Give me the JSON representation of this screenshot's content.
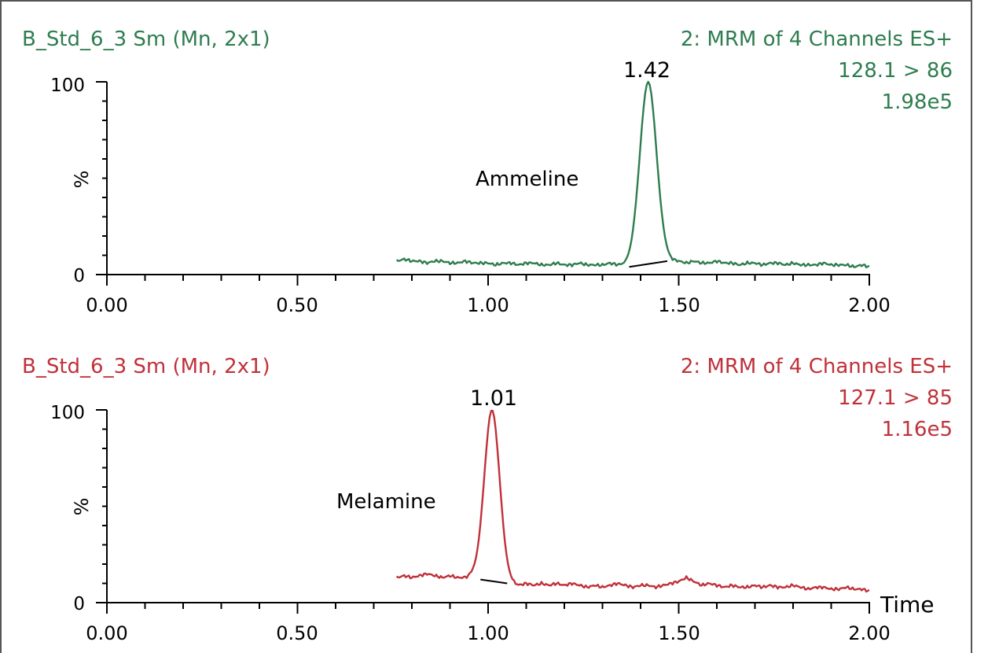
{
  "colors": {
    "top_trace": "#2e7d4f",
    "bottom_trace": "#c0313a",
    "axis": "#000000",
    "baseline": "#000000",
    "frame": "#555555"
  },
  "chart_data": [
    {
      "type": "line",
      "header_left": "B_Std_6_3 Sm (Mn, 2x1)",
      "header_right": [
        "2: MRM of 4 Channels ES+",
        "128.1 > 86",
        "1.98e5"
      ],
      "ylabel": "%",
      "xlabel": "",
      "xlim": [
        0.0,
        2.0
      ],
      "ylim": [
        0,
        100
      ],
      "x_ticks": [
        "0.00",
        "0.50",
        "1.00",
        "1.50",
        "2.00"
      ],
      "y_ticks": [
        "0",
        "100"
      ],
      "peak_label": "1.42",
      "annotation": "Ammeline",
      "peak": {
        "x": 1.42,
        "y": 100,
        "width": 0.022
      },
      "baseline_segment": {
        "x": [
          1.37,
          1.47
        ],
        "y": [
          4,
          7
        ]
      },
      "series": [
        {
          "x": [
            0.76,
            0.78,
            0.8,
            0.82,
            0.84,
            0.86,
            0.88,
            0.9,
            0.92,
            0.94,
            0.96,
            0.98,
            1.0,
            1.02,
            1.04,
            1.06,
            1.08,
            1.1,
            1.12,
            1.14,
            1.16,
            1.18,
            1.2,
            1.22,
            1.24,
            1.26,
            1.28,
            1.3,
            1.32,
            1.34,
            1.36,
            1.38,
            1.4,
            1.42,
            1.44,
            1.46,
            1.48,
            1.5,
            1.52,
            1.54,
            1.56,
            1.58,
            1.6,
            1.62,
            1.64,
            1.66,
            1.68,
            1.7,
            1.72,
            1.74,
            1.76,
            1.78,
            1.8,
            1.82,
            1.84,
            1.86,
            1.88,
            1.9,
            1.92,
            1.94,
            1.96,
            1.98,
            2.0
          ],
          "y": [
            7,
            8,
            7,
            7,
            6,
            7,
            7,
            6,
            6,
            7,
            6,
            6,
            6,
            5,
            6,
            6,
            5,
            6,
            6,
            5,
            5,
            6,
            5,
            5,
            6,
            5,
            5,
            5,
            6,
            5,
            5,
            5,
            5,
            5,
            6,
            7,
            7,
            7,
            6,
            7,
            6,
            6,
            7,
            6,
            6,
            5,
            6,
            6,
            5,
            6,
            6,
            5,
            6,
            5,
            5,
            5,
            6,
            5,
            5,
            5,
            4,
            5,
            4
          ]
        }
      ]
    },
    {
      "type": "line",
      "header_left": "B_Std_6_3 Sm (Mn, 2x1)",
      "header_right": [
        "2: MRM of 4 Channels ES+",
        "127.1 > 85",
        "1.16e5"
      ],
      "ylabel": "%",
      "xlabel": "Time",
      "xlim": [
        0.0,
        2.0
      ],
      "ylim": [
        0,
        100
      ],
      "x_ticks": [
        "0.00",
        "0.50",
        "1.00",
        "1.50",
        "2.00"
      ],
      "y_ticks": [
        "0",
        "100"
      ],
      "peak_label": "1.01",
      "annotation": "Melamine",
      "peak": {
        "x": 1.01,
        "y": 100,
        "width": 0.02
      },
      "baseline_segment": {
        "x": [
          0.98,
          1.05
        ],
        "y": [
          12,
          10
        ]
      },
      "series": [
        {
          "x": [
            0.76,
            0.78,
            0.8,
            0.82,
            0.84,
            0.86,
            0.88,
            0.9,
            0.92,
            0.94,
            0.96,
            0.98,
            1.0,
            1.02,
            1.04,
            1.06,
            1.08,
            1.1,
            1.12,
            1.14,
            1.16,
            1.18,
            1.2,
            1.22,
            1.24,
            1.26,
            1.28,
            1.3,
            1.32,
            1.34,
            1.36,
            1.38,
            1.4,
            1.42,
            1.44,
            1.46,
            1.48,
            1.5,
            1.52,
            1.54,
            1.56,
            1.58,
            1.6,
            1.62,
            1.64,
            1.66,
            1.68,
            1.7,
            1.72,
            1.74,
            1.76,
            1.78,
            1.8,
            1.82,
            1.84,
            1.86,
            1.88,
            1.9,
            1.92,
            1.94,
            1.96,
            1.98,
            2.0
          ],
          "y": [
            13,
            14,
            13,
            14,
            15,
            14,
            13,
            14,
            13,
            13,
            14,
            13,
            12,
            12,
            11,
            10,
            9,
            10,
            9,
            10,
            9,
            10,
            9,
            10,
            9,
            8,
            9,
            8,
            9,
            10,
            9,
            8,
            9,
            9,
            8,
            9,
            10,
            11,
            13,
            11,
            9,
            10,
            9,
            8,
            9,
            8,
            8,
            9,
            8,
            9,
            8,
            8,
            9,
            8,
            7,
            8,
            8,
            7,
            7,
            8,
            7,
            7,
            6
          ]
        }
      ]
    }
  ]
}
